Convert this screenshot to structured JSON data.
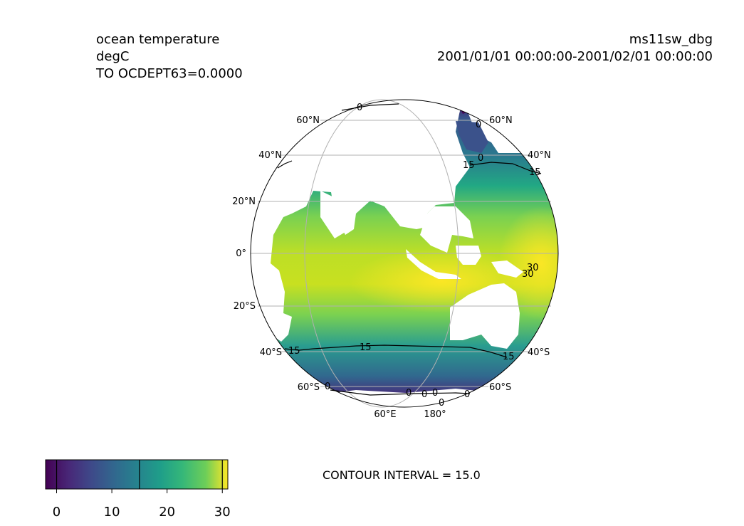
{
  "header_left": {
    "variable": "ocean temperature",
    "units": "degC",
    "level": "TO OCDEPT63=0.0000"
  },
  "header_right": {
    "dataset": "ms11sw_dbg",
    "time_range": "2001/01/01 00:00:00-2001/02/01 00:00:00"
  },
  "map": {
    "projection": "orthographic",
    "center_longitude": 120,
    "lat_labels_left": [
      "60°N",
      "40°N",
      "20°N",
      "0°",
      "20°S",
      "40°S",
      "60°S"
    ],
    "lat_labels_right": [
      "60°N",
      "40°N",
      "40°S",
      "60°S"
    ],
    "lon_labels": [
      "60°E",
      "180°"
    ],
    "contour_labels": [
      "0",
      "0",
      "15",
      "15",
      "15",
      "15",
      "15",
      "30",
      "30",
      "0",
      "0",
      "0",
      "0",
      "0",
      "0",
      "0"
    ]
  },
  "colorbar": {
    "colormap": "viridis",
    "min": -2,
    "max": 31,
    "ticks": [
      "0",
      "10",
      "20",
      "30"
    ],
    "contour_lines_at": [
      0,
      15,
      30
    ]
  },
  "contour_interval_text": "CONTOUR INTERVAL = 15.0"
}
